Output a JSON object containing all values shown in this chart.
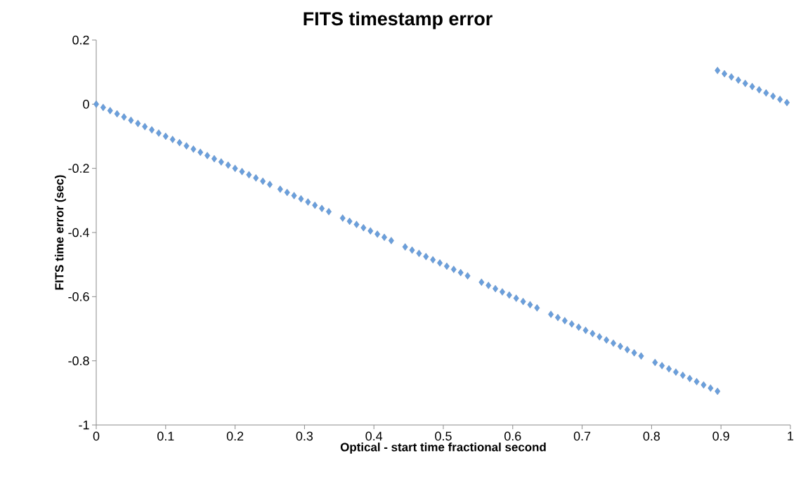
{
  "chart_data": {
    "type": "scatter",
    "title": "FITS timestamp error",
    "xlabel": "Optical - start time fractional second",
    "ylabel": "FITS time error (sec)",
    "x": [
      0,
      0.01,
      0.02,
      0.03,
      0.04,
      0.05,
      0.06,
      0.07,
      0.08,
      0.09,
      0.1,
      0.11,
      0.12,
      0.13,
      0.14,
      0.15,
      0.16,
      0.17,
      0.18,
      0.19,
      0.2,
      0.21,
      0.22,
      0.23,
      0.24,
      0.25,
      0.265,
      0.275,
      0.285,
      0.295,
      0.305,
      0.315,
      0.325,
      0.335,
      0.355,
      0.365,
      0.375,
      0.385,
      0.395,
      0.405,
      0.415,
      0.425,
      0.445,
      0.455,
      0.465,
      0.475,
      0.485,
      0.495,
      0.505,
      0.515,
      0.525,
      0.535,
      0.555,
      0.565,
      0.575,
      0.585,
      0.595,
      0.605,
      0.615,
      0.625,
      0.635,
      0.655,
      0.665,
      0.675,
      0.685,
      0.695,
      0.705,
      0.715,
      0.725,
      0.735,
      0.745,
      0.755,
      0.765,
      0.775,
      0.785,
      0.805,
      0.815,
      0.825,
      0.835,
      0.845,
      0.855,
      0.865,
      0.875,
      0.885,
      0.895,
      0.895,
      0.905,
      0.915,
      0.925,
      0.935,
      0.945,
      0.955,
      0.965,
      0.975,
      0.985,
      0.995
    ],
    "values": [
      0,
      -0.01,
      -0.02,
      -0.03,
      -0.04,
      -0.05,
      -0.06,
      -0.07,
      -0.08,
      -0.09,
      -0.1,
      -0.11,
      -0.12,
      -0.13,
      -0.14,
      -0.15,
      -0.16,
      -0.17,
      -0.18,
      -0.19,
      -0.2,
      -0.21,
      -0.22,
      -0.23,
      -0.24,
      -0.25,
      -0.265,
      -0.275,
      -0.285,
      -0.295,
      -0.305,
      -0.315,
      -0.325,
      -0.335,
      -0.355,
      -0.365,
      -0.375,
      -0.385,
      -0.395,
      -0.405,
      -0.415,
      -0.425,
      -0.445,
      -0.455,
      -0.465,
      -0.475,
      -0.485,
      -0.495,
      -0.505,
      -0.515,
      -0.525,
      -0.535,
      -0.555,
      -0.565,
      -0.575,
      -0.585,
      -0.595,
      -0.605,
      -0.615,
      -0.625,
      -0.635,
      -0.655,
      -0.665,
      -0.675,
      -0.685,
      -0.695,
      -0.705,
      -0.715,
      -0.725,
      -0.735,
      -0.745,
      -0.755,
      -0.765,
      -0.775,
      -0.785,
      -0.805,
      -0.815,
      -0.825,
      -0.835,
      -0.845,
      -0.855,
      -0.865,
      -0.875,
      -0.885,
      -0.895,
      0.105,
      0.095,
      0.085,
      0.075,
      0.065,
      0.055,
      0.045,
      0.035,
      0.025,
      0.015,
      0.005
    ],
    "color": "#6a9fdc",
    "marker": "diamond",
    "xlim": [
      0,
      1
    ],
    "ylim": [
      -1,
      0.2
    ],
    "xticks": [
      0,
      0.1,
      0.2,
      0.3,
      0.4,
      0.5,
      0.6,
      0.7,
      0.8,
      0.9,
      1
    ],
    "yticks": [
      -1,
      -0.8,
      -0.6,
      -0.4,
      -0.2,
      0,
      0.2
    ]
  }
}
